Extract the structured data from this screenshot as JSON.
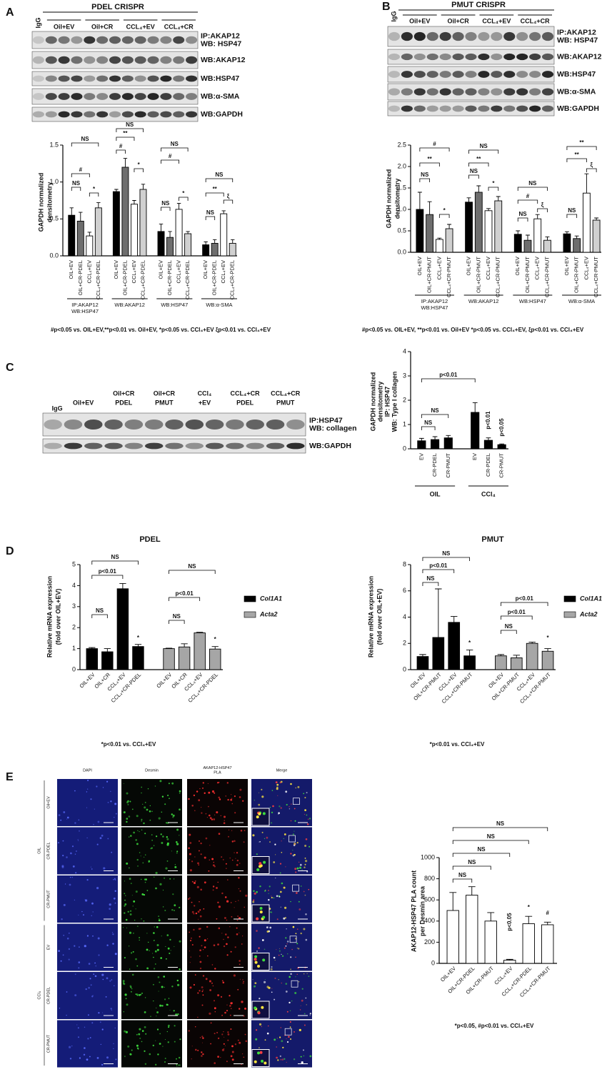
{
  "panel_labels": [
    "A",
    "B",
    "C",
    "D",
    "E"
  ],
  "blots": [
    {
      "title": "PDEL CRISPR",
      "igg": "IgG",
      "lanes": [
        [
          "Oil+EV"
        ],
        [
          "Oil+CR"
        ],
        [
          "CCL₄+EV"
        ],
        [
          "CCL₄+CR"
        ]
      ],
      "rows": [
        [
          "IP:AKAP12",
          "WB: HSP47"
        ],
        [
          "WB:AKAP12"
        ],
        [
          "WB:HSP47"
        ],
        [
          "WB:α-SMA"
        ],
        [
          "WB:GAPDH"
        ]
      ]
    },
    {
      "title": "PMUT CRISPR",
      "igg": "IgG",
      "lanes": [
        [
          "Oil+EV"
        ],
        [
          "Oil+CR"
        ],
        [
          "CCL₄+EV"
        ],
        [
          "CCL₄+CR"
        ]
      ],
      "rows": [
        [
          "IP:AKAP12",
          "WB: HSP47"
        ],
        [
          "WB:AKAP12"
        ],
        [
          "WB:HSP47"
        ],
        [
          "WB:α-SMA"
        ],
        [
          "WB:GAPDH"
        ]
      ]
    },
    {
      "igg": "IgG",
      "lanes": [
        [
          "Oil+EV"
        ],
        [
          "Oil+CR",
          "PDEL"
        ],
        [
          "Oil+CR",
          "PMUT"
        ],
        [
          "CCl₄",
          "+EV"
        ],
        [
          "CCL₄+CR",
          "PDEL"
        ],
        [
          "CCL₄+CR",
          "PMUT"
        ]
      ],
      "rows": [
        [
          "IP:HSP47",
          "WB: collagen"
        ],
        [
          "WB:GAPDH"
        ]
      ]
    }
  ],
  "microscopy": {
    "columns": [
      [
        "DAPI"
      ],
      [
        "Desmin"
      ],
      [
        "AKAP12-HSP47",
        "PLA"
      ],
      [
        "Merge"
      ]
    ],
    "rows": [
      "Oil+EV",
      "CR-PDEL",
      "CR-PMUT",
      "EV",
      "CR-PDEL",
      "CR-PMUT"
    ],
    "groups": [
      "OIL",
      "CCl₄"
    ]
  },
  "chart_data": [
    {
      "type": "bar",
      "ylabel": [
        "GAPDH normalized",
        "densitometry"
      ],
      "categories": [
        "OIL+EV",
        "OIL+CR-PDEL",
        "CCL₄+EV",
        "CCL₄+CR-PDEL"
      ],
      "colors": [
        "#000000",
        "#6e6e6e",
        "#ffffff",
        "#d0d0d0"
      ],
      "groups": [
        {
          "label": [
            "IP:AKAP12",
            "WB:HSP47"
          ],
          "values": [
            0.55,
            0.47,
            0.27,
            0.65
          ],
          "errors": [
            0.1,
            0.12,
            0.05,
            0.07
          ]
        },
        {
          "label": [
            "WB:AKAP12"
          ],
          "values": [
            0.87,
            1.2,
            0.7,
            0.9
          ],
          "errors": [
            0.03,
            0.12,
            0.05,
            0.07
          ]
        },
        {
          "label": [
            "WB:HSP47"
          ],
          "values": [
            0.33,
            0.25,
            0.63,
            0.3
          ],
          "errors": [
            0.1,
            0.08,
            0.08,
            0.03
          ]
        },
        {
          "label": [
            "WB:α-SMA"
          ],
          "values": [
            0.15,
            0.17,
            0.57,
            0.17
          ],
          "errors": [
            0.04,
            0.05,
            0.04,
            0.05
          ]
        }
      ],
      "ylim": [
        0,
        1.5
      ],
      "yticks": [
        {
          "value": 0,
          "label": "0.0"
        },
        0.5,
        {
          "value": 1,
          "label": "1.0"
        },
        1.5
      ],
      "annotations": [
        "NS",
        "#",
        "NS",
        "*",
        "#",
        "**",
        "NS",
        "*",
        "NS",
        "#",
        "NS",
        "*",
        "NS",
        "**",
        "NS",
        "ξ"
      ],
      "footnote": "#p<0.05 vs. OIL+EV,**p<0.01 vs. Oil+EV, *p<0.05 vs. CCl₄+EV ξp<0.01 vs. CCl₄+EV"
    },
    {
      "type": "bar",
      "ylabel": [
        "GAPDH normalized",
        "densitometry"
      ],
      "categories": [
        "OIL+EV",
        "OIL+CR-PMUT",
        "CCL₄+EV",
        "CCL₄+CR-PMUT"
      ],
      "colors": [
        "#000000",
        "#6e6e6e",
        "#ffffff",
        "#d0d0d0"
      ],
      "groups": [
        {
          "label": [
            "IP:AKAP12",
            "WB:HSP47"
          ],
          "values": [
            1.0,
            0.88,
            0.3,
            0.55
          ],
          "errors": [
            0.4,
            0.3,
            0.03,
            0.1
          ]
        },
        {
          "label": [
            "WB:AKAP12"
          ],
          "values": [
            1.17,
            1.4,
            0.97,
            1.2
          ],
          "errors": [
            0.1,
            0.15,
            0.05,
            0.1
          ]
        },
        {
          "label": [
            "WB:HSP47"
          ],
          "values": [
            0.42,
            0.28,
            0.78,
            0.28
          ],
          "errors": [
            0.08,
            0.12,
            0.1,
            0.08
          ]
        },
        {
          "label": [
            "WB:α-SMA"
          ],
          "values": [
            0.43,
            0.32,
            1.38,
            0.75
          ],
          "errors": [
            0.05,
            0.06,
            0.45,
            0.05
          ]
        }
      ],
      "ylim": [
        0,
        2.5
      ],
      "yticks": [
        {
          "value": 0,
          "label": "0.0"
        },
        0.5,
        {
          "value": 1,
          "label": "1.0"
        },
        1.5,
        {
          "value": 2,
          "label": "2.0"
        },
        2.5
      ],
      "annotations": [
        "NS",
        "**",
        "#",
        "*",
        "NS",
        "**",
        "NS",
        "*",
        "NS",
        "#",
        "NS",
        "ξ",
        "NS",
        "**",
        "**",
        "ξ"
      ],
      "footnote": "#p<0.05 vs. OIL+EV, **p<0.01 vs. Oil+EV *p<0.05 vs. CCl₄+EV, ξp<0.01 vs. CCl₄+EV"
    },
    {
      "type": "bar",
      "ylabel": [
        "GAPDH normalized",
        "densitometry",
        "IP: HSP47",
        "WB: Type I collagen"
      ],
      "categories": [
        "EV",
        "CR-PDEL",
        "CR-PMUT",
        "EV",
        "CR-PDEL",
        "CR-PMUT"
      ],
      "values": [
        0.33,
        0.38,
        0.45,
        1.5,
        0.35,
        0.17
      ],
      "errors": [
        0.1,
        0.12,
        0.1,
        0.4,
        0.1,
        0.03
      ],
      "color": "#000000",
      "group_labels": [
        "OIL",
        "CCl₄"
      ],
      "ylim": [
        0,
        4
      ],
      "yticks": [
        0,
        1,
        2,
        3,
        4
      ],
      "annotations": [
        "NS",
        "NS",
        "p<0.01",
        "p<0.01",
        "p<0.05"
      ]
    },
    {
      "type": "bar",
      "title": "PDEL",
      "ylabel": [
        "Relative mRNA expression",
        "(fold over OIL+EV)"
      ],
      "categories": [
        "OIL+EV",
        "OIL+CR",
        "CCL₄+EV",
        "CCL₄+CR-PDEL"
      ],
      "series": [
        {
          "name": "Col1A1",
          "color": "#000000",
          "values": [
            1.0,
            0.85,
            3.85,
            1.1
          ],
          "errors": [
            0.05,
            0.15,
            0.25,
            0.1
          ]
        },
        {
          "name": "Acta2",
          "color": "#a6a6a6",
          "values": [
            1.0,
            1.08,
            1.75,
            0.98
          ],
          "errors": [
            0.02,
            0.15,
            0.03,
            0.12
          ]
        }
      ],
      "ylim": [
        0,
        5
      ],
      "yticks": [
        0,
        1,
        2,
        3,
        4,
        5
      ],
      "annotations": [
        "NS",
        "p<0.01",
        "NS",
        "*",
        "NS",
        "p<0.01",
        "NS",
        "*"
      ],
      "footnote": "*p<0.01 vs. CCl₄+EV"
    },
    {
      "type": "bar",
      "title": "PMUT",
      "ylabel": [
        "Relative mRNA expression",
        "(fold over OIL+EV)"
      ],
      "categories": [
        "OIL+EV",
        "OIL+CR-PMUT",
        "CCL₄+EV",
        "CCL₄+CR-PMUT"
      ],
      "series": [
        {
          "name": "Col1A1",
          "color": "#000000",
          "values": [
            1.0,
            2.45,
            3.6,
            1.05
          ],
          "errors": [
            0.15,
            3.7,
            0.45,
            0.45
          ]
        },
        {
          "name": "Acta2",
          "color": "#a6a6a6",
          "values": [
            1.05,
            0.9,
            2.0,
            1.4
          ],
          "errors": [
            0.1,
            0.2,
            0.1,
            0.2
          ]
        }
      ],
      "ylim": [
        0,
        8
      ],
      "yticks": [
        0,
        2,
        4,
        6,
        8
      ],
      "annotations": [
        "NS",
        "p<0.01",
        "NS",
        "*",
        "NS",
        "p<0.01",
        "p<0.01",
        "*"
      ],
      "footnote": "*p<0.01 vs. CCl₄+EV"
    },
    {
      "type": "bar",
      "ylabel": [
        "AKAP12-HSP47 PLA count",
        "per Desmin area"
      ],
      "categories": [
        "OIL+EV",
        "OIL+CR-PDEL",
        "OIL+CR-PMUT",
        "CCL₄+EV",
        "CCL₄+CR-PDEL",
        "CCL₄+CR-PMUT"
      ],
      "values": [
        500,
        645,
        400,
        30,
        375,
        365
      ],
      "errors": [
        170,
        80,
        80,
        8,
        70,
        25
      ],
      "color": "#ffffff",
      "ylim": [
        0,
        1000
      ],
      "yticks": [
        0,
        200,
        400,
        600,
        800,
        1000
      ],
      "annotations": [
        "NS",
        "NS",
        "NS",
        "NS",
        "NS",
        "p<0.05",
        "*",
        "#"
      ],
      "footnote": "*p<0.05, #p<0.01 vs. CCl₄+EV"
    }
  ]
}
